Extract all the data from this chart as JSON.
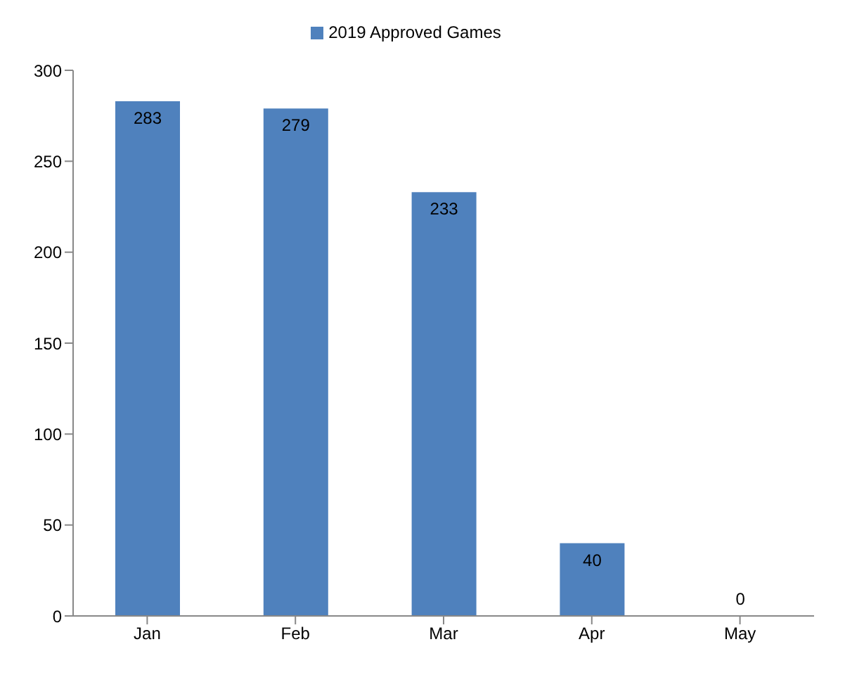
{
  "chart_data": {
    "type": "bar",
    "categories": [
      "Jan",
      "Feb",
      "Mar",
      "Apr",
      "May"
    ],
    "series": [
      {
        "name": "2019 Approved Games",
        "color": "#4f81bd",
        "values": [
          283,
          279,
          233,
          40,
          0
        ]
      }
    ],
    "ylim": [
      0,
      300
    ],
    "yticks": [
      0,
      50,
      100,
      150,
      200,
      250,
      300
    ],
    "grid": false,
    "legend": "top",
    "data_labels": true
  }
}
